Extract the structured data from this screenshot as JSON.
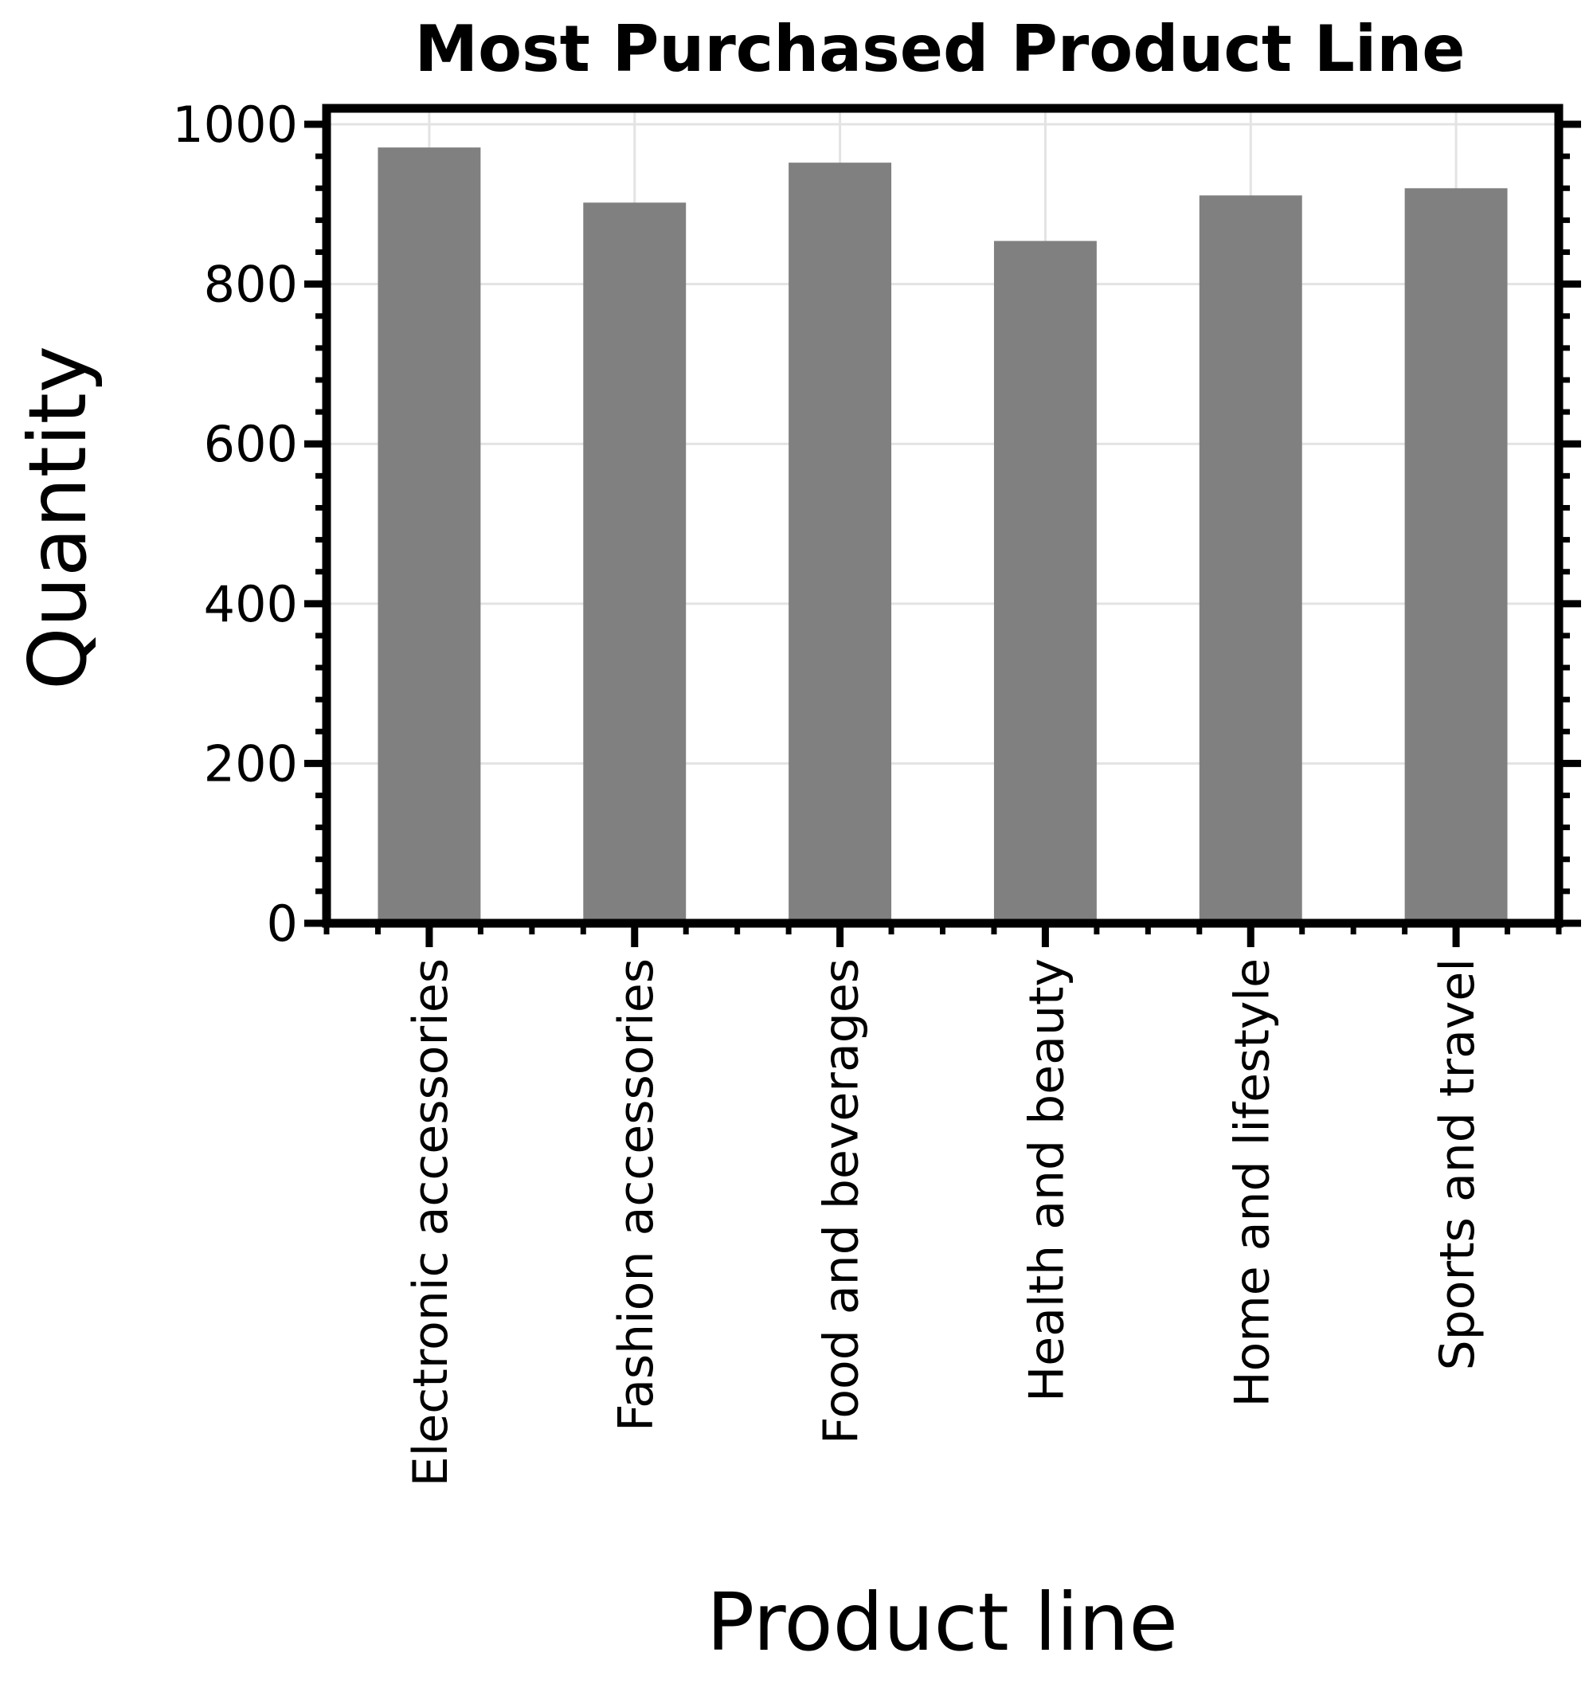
{
  "chart_data": {
    "type": "bar",
    "title": "Most Purchased Product Line",
    "xlabel": "Product line",
    "ylabel": "Quantity",
    "categories": [
      "Electronic accessories",
      "Fashion accessories",
      "Food and beverages",
      "Health and beauty",
      "Home and lifestyle",
      "Sports and travel"
    ],
    "values": [
      971,
      902,
      952,
      854,
      911,
      920
    ],
    "ylim": [
      0,
      1020
    ],
    "yticks": [
      "0",
      "200",
      "400",
      "600",
      "800",
      "1000"
    ],
    "grid": true,
    "legend": "none",
    "colors": {
      "bar": "#808080",
      "frame": "#000000",
      "grid": "#e3e3e3"
    }
  }
}
